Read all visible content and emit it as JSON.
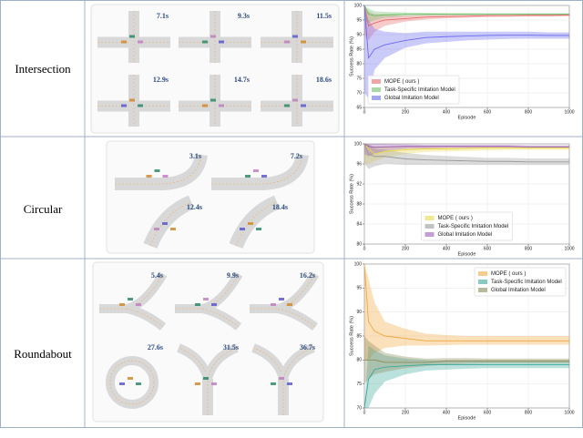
{
  "rows": [
    {
      "label": "Intersection",
      "times": [
        "7.1s",
        "9.3s",
        "11.5s",
        "12.9s",
        "14.7s",
        "18.6s"
      ]
    },
    {
      "label": "Circular",
      "times": [
        "3.1s",
        "7.2s",
        "12.4s",
        "18.4s"
      ]
    },
    {
      "label": "Roundabout",
      "times": [
        "5.4s",
        "9.9s",
        "16.2s",
        "27.6s",
        "31.5s",
        "36.7s"
      ]
    }
  ],
  "chart_data": [
    {
      "type": "line",
      "xlabel": "Episode",
      "ylabel": "Success Rate (%)",
      "x": [
        0,
        20,
        50,
        100,
        200,
        300,
        400,
        500,
        600,
        700,
        800,
        900,
        1000
      ],
      "xlim": [
        0,
        1000
      ],
      "xticks": [
        0,
        200,
        400,
        600,
        800,
        1000
      ],
      "ylim": [
        65,
        100
      ],
      "yticks": [
        65,
        70,
        75,
        80,
        85,
        90,
        95,
        100
      ],
      "grid": true,
      "legend": "lower left",
      "series": [
        {
          "name": "MOPE ( ours )",
          "color": "#e86a6a",
          "values": [
            100,
            93,
            94,
            95,
            95.5,
            96,
            96.2,
            96.3,
            96.5,
            96.5,
            96.6,
            96.6,
            96.7
          ],
          "lower": [
            90,
            88,
            91,
            93,
            94.5,
            95.2,
            95.6,
            95.8,
            96,
            96.1,
            96.2,
            96.2,
            96.3
          ],
          "upper": [
            100,
            98,
            97,
            97,
            96.5,
            96.8,
            96.8,
            96.8,
            97,
            97,
            97,
            97,
            97.1
          ]
        },
        {
          "name": "Task-Specific Imitation Model",
          "color": "#6fbf6a",
          "values": [
            100,
            97,
            96.5,
            96.8,
            97,
            97,
            97,
            97,
            97,
            97,
            97,
            97,
            97
          ],
          "lower": [
            95,
            94,
            95,
            95.8,
            96.3,
            96.5,
            96.6,
            96.6,
            96.7,
            96.7,
            96.7,
            96.7,
            96.7
          ],
          "upper": [
            100,
            99,
            98,
            97.8,
            97.6,
            97.5,
            97.4,
            97.4,
            97.3,
            97.3,
            97.3,
            97.3,
            97.3
          ]
        },
        {
          "name": "Global Imitation Model",
          "color": "#6a6af0",
          "values": [
            100,
            82,
            85,
            86.5,
            88,
            89,
            89.3,
            89.5,
            89.7,
            89.8,
            89.8,
            89.7,
            89.7
          ],
          "lower": [
            70,
            68,
            78,
            82,
            85.5,
            87,
            87.5,
            88,
            88.3,
            88.5,
            88.6,
            88.6,
            88.6
          ],
          "upper": [
            100,
            95,
            92,
            91,
            90.5,
            91,
            91,
            91,
            91,
            91,
            91,
            90.8,
            90.8
          ]
        }
      ]
    },
    {
      "type": "line",
      "xlabel": "Episode",
      "ylabel": "Success Rate (%)",
      "x": [
        0,
        20,
        50,
        100,
        200,
        300,
        400,
        500,
        600,
        700,
        800,
        900,
        1000
      ],
      "xlim": [
        0,
        1000
      ],
      "xticks": [
        0,
        200,
        400,
        600,
        800,
        1000
      ],
      "ylim": [
        80,
        100
      ],
      "yticks": [
        80,
        84,
        88,
        92,
        96,
        100
      ],
      "grid": true,
      "legend": "lower center",
      "series": [
        {
          "name": "MOPE ( ours )",
          "color": "#e8d84a",
          "values": [
            100,
            99,
            98,
            98.5,
            98.8,
            99,
            99,
            99.1,
            99.2,
            99.2,
            99.2,
            99.2,
            99.2
          ],
          "lower": [
            96,
            96,
            96.5,
            97.3,
            98,
            98.4,
            98.5,
            98.6,
            98.7,
            98.8,
            98.8,
            98.8,
            98.8
          ],
          "upper": [
            100,
            100,
            99.5,
            99.5,
            99.5,
            99.5,
            99.5,
            99.5,
            99.6,
            99.6,
            99.6,
            99.6,
            99.6
          ]
        },
        {
          "name": "Task-Specific Imitation Model",
          "color": "#9a9a9a",
          "values": [
            100,
            98,
            97.5,
            97.5,
            97,
            96.8,
            96.7,
            96.6,
            96.5,
            96.5,
            96.4,
            96.4,
            96.4
          ],
          "lower": [
            96,
            95,
            95.5,
            96,
            95.8,
            95.8,
            95.8,
            95.8,
            95.8,
            95.8,
            95.8,
            95.8,
            95.8
          ],
          "upper": [
            100,
            100,
            99,
            98.8,
            98.2,
            97.8,
            97.6,
            97.4,
            97.2,
            97.2,
            97.1,
            97.1,
            97.1
          ]
        },
        {
          "name": "Global Imitation Model",
          "color": "#9b5cb5",
          "values": [
            100,
            99.5,
            99.3,
            99.4,
            99.5,
            99.5,
            99.5,
            99.5,
            99.5,
            99.5,
            99.4,
            99.4,
            99.4
          ],
          "lower": [
            98,
            97.5,
            98,
            98.6,
            99,
            99.1,
            99.2,
            99.2,
            99.2,
            99.2,
            99.1,
            99.1,
            99.1
          ],
          "upper": [
            100,
            100,
            100,
            100,
            99.9,
            99.8,
            99.8,
            99.8,
            99.8,
            99.8,
            99.7,
            99.7,
            99.7
          ]
        }
      ]
    },
    {
      "type": "line",
      "xlabel": "Episode",
      "ylabel": "Success Rate (%)",
      "x": [
        0,
        20,
        50,
        100,
        200,
        300,
        400,
        500,
        600,
        700,
        800,
        900,
        1000
      ],
      "xlim": [
        0,
        1000
      ],
      "xticks": [
        0,
        200,
        400,
        600,
        800,
        1000
      ],
      "ylim": [
        70,
        100
      ],
      "yticks": [
        70,
        75,
        80,
        85,
        90,
        95,
        100
      ],
      "grid": true,
      "legend": "upper right",
      "series": [
        {
          "name": "MOPE ( ours )",
          "color": "#f0a840",
          "values": [
            100,
            88,
            86,
            85,
            84.5,
            84,
            84,
            84,
            84,
            84,
            84,
            84,
            84
          ],
          "lower": [
            80,
            80,
            81.5,
            82.5,
            83,
            83,
            83.1,
            83.2,
            83.2,
            83.2,
            83.2,
            83.2,
            83.2
          ],
          "upper": [
            100,
            97,
            92,
            88,
            86.5,
            85.5,
            85.2,
            85,
            85,
            85,
            85,
            85,
            85
          ]
        },
        {
          "name": "Task-Specific Imitation Model",
          "color": "#3aa89a",
          "values": [
            70,
            76,
            78,
            78.5,
            78.8,
            79,
            79,
            79,
            79,
            79,
            79,
            79,
            79
          ],
          "lower": [
            70,
            70,
            73,
            75.5,
            77,
            77.8,
            78,
            78.2,
            78.3,
            78.3,
            78.3,
            78.3,
            78.3
          ],
          "upper": [
            70,
            83,
            82,
            81,
            80.3,
            80,
            79.8,
            79.8,
            79.7,
            79.7,
            79.7,
            79.7,
            79.7
          ]
        },
        {
          "name": "Global Imitation Model",
          "color": "#8a8a5a",
          "values": [
            80,
            80,
            80,
            79.5,
            79.5,
            79.5,
            79.8,
            79.8,
            79.8,
            79.8,
            79.8,
            79.8,
            79.8
          ],
          "lower": [
            75,
            76,
            77,
            77.5,
            78.3,
            78.7,
            79.1,
            79.2,
            79.3,
            79.3,
            79.3,
            79.3,
            79.3
          ],
          "upper": [
            85,
            84,
            83,
            81.5,
            80.7,
            80.3,
            80.4,
            80.4,
            80.3,
            80.3,
            80.3,
            80.3,
            80.3
          ]
        }
      ]
    }
  ]
}
